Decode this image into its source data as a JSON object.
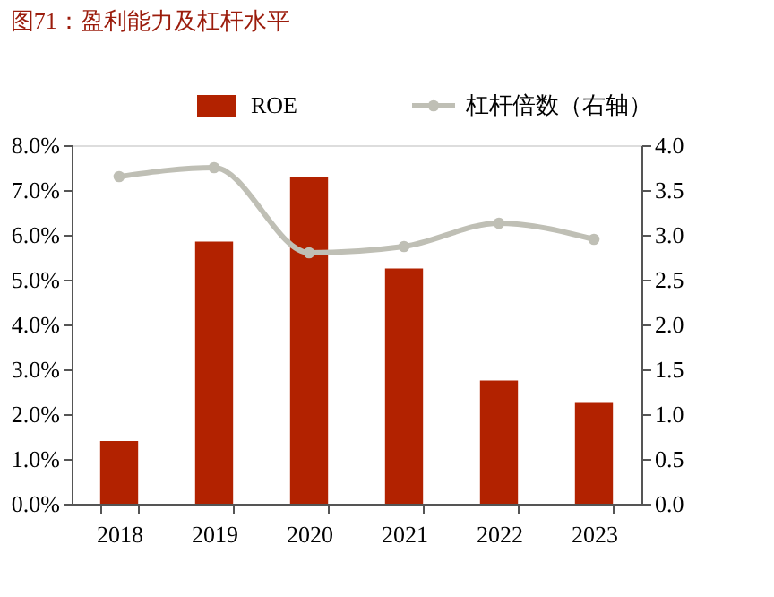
{
  "chart_data": {
    "type": "bar",
    "title": "图71：盈利能力及杠杆水平",
    "categories": [
      "2018",
      "2019",
      "2020",
      "2021",
      "2022",
      "2023"
    ],
    "series": [
      {
        "name": "ROE",
        "color": "#b22200",
        "values": [
          1.4,
          5.85,
          7.3,
          5.25,
          2.75,
          2.25
        ]
      },
      {
        "name": "杠杆倍数（右轴）",
        "type": "line",
        "axis": "y2",
        "color": "#bfbfb5",
        "values": [
          3.65,
          3.75,
          2.8,
          2.87,
          3.13,
          2.95
        ]
      }
    ],
    "ylim": [
      0,
      8
    ],
    "yticks": [
      {
        "value": 0,
        "label": "0.0%"
      },
      {
        "value": 1,
        "label": "1.0%"
      },
      {
        "value": 2,
        "label": "2.0%"
      },
      {
        "value": 3,
        "label": "3.0%"
      },
      {
        "value": 4,
        "label": "4.0%"
      },
      {
        "value": 5,
        "label": "5.0%"
      },
      {
        "value": 6,
        "label": "6.0%"
      },
      {
        "value": 7,
        "label": "7.0%"
      },
      {
        "value": 8,
        "label": "8.0%"
      }
    ],
    "y2lim": [
      0,
      4
    ],
    "y2ticks": [
      {
        "value": 0,
        "label": "0.0"
      },
      {
        "value": 0.5,
        "label": "0.5"
      },
      {
        "value": 1,
        "label": "1.0"
      },
      {
        "value": 1.5,
        "label": "1.5"
      },
      {
        "value": 2,
        "label": "2.0"
      },
      {
        "value": 2.5,
        "label": "2.5"
      },
      {
        "value": 3,
        "label": "3.0"
      },
      {
        "value": 3.5,
        "label": "3.5"
      },
      {
        "value": 4,
        "label": "4.0"
      }
    ],
    "grid": false,
    "legend": "top",
    "marker": "circle",
    "line_style": "solid"
  }
}
